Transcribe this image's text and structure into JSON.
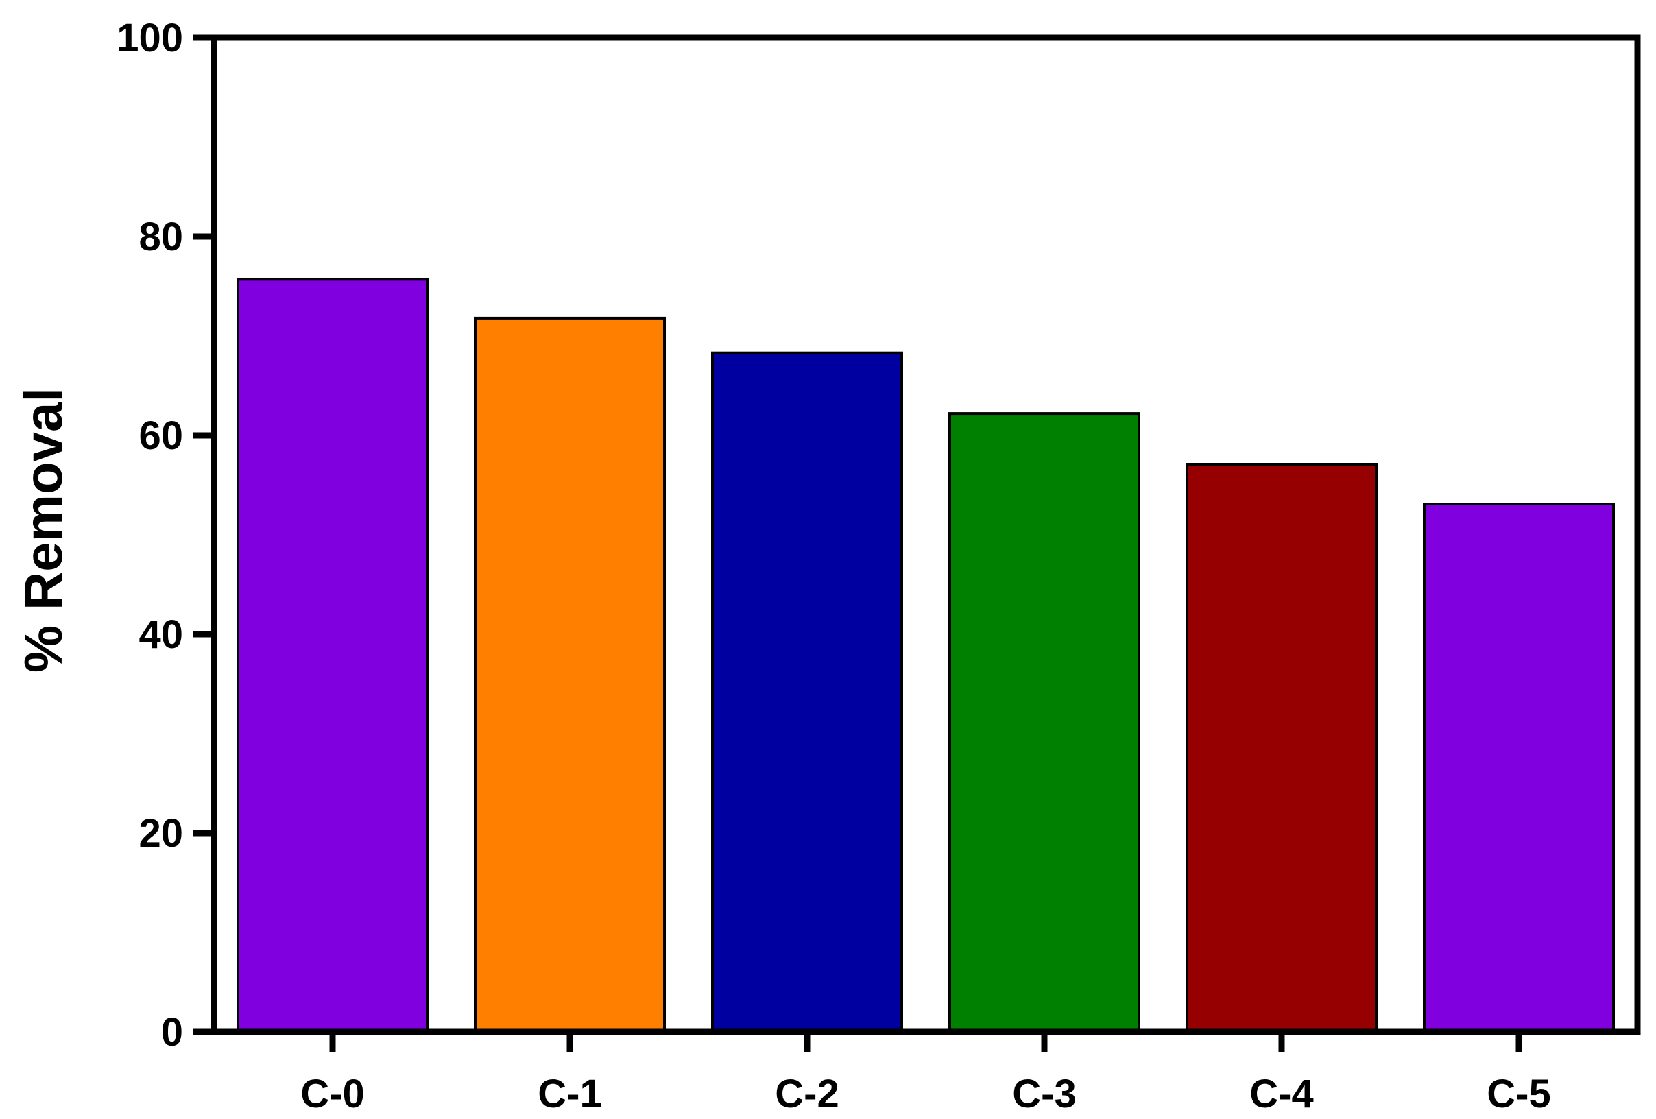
{
  "chart_data": {
    "type": "bar",
    "title": "",
    "xlabel": "",
    "ylabel": "% Removal",
    "categories": [
      "C-0",
      "C-1",
      "C-2",
      "C-3",
      "C-4",
      "C-5"
    ],
    "values": [
      75.7,
      71.8,
      68.3,
      62.2,
      57.1,
      53.1
    ],
    "colors": [
      "#8000E0",
      "#FF8000",
      "#0000A0",
      "#008000",
      "#960000",
      "#8000E0"
    ],
    "ylim": [
      0,
      100
    ],
    "yticks": [
      0,
      20,
      40,
      60,
      80,
      100
    ],
    "grid": false,
    "legend": "none"
  }
}
